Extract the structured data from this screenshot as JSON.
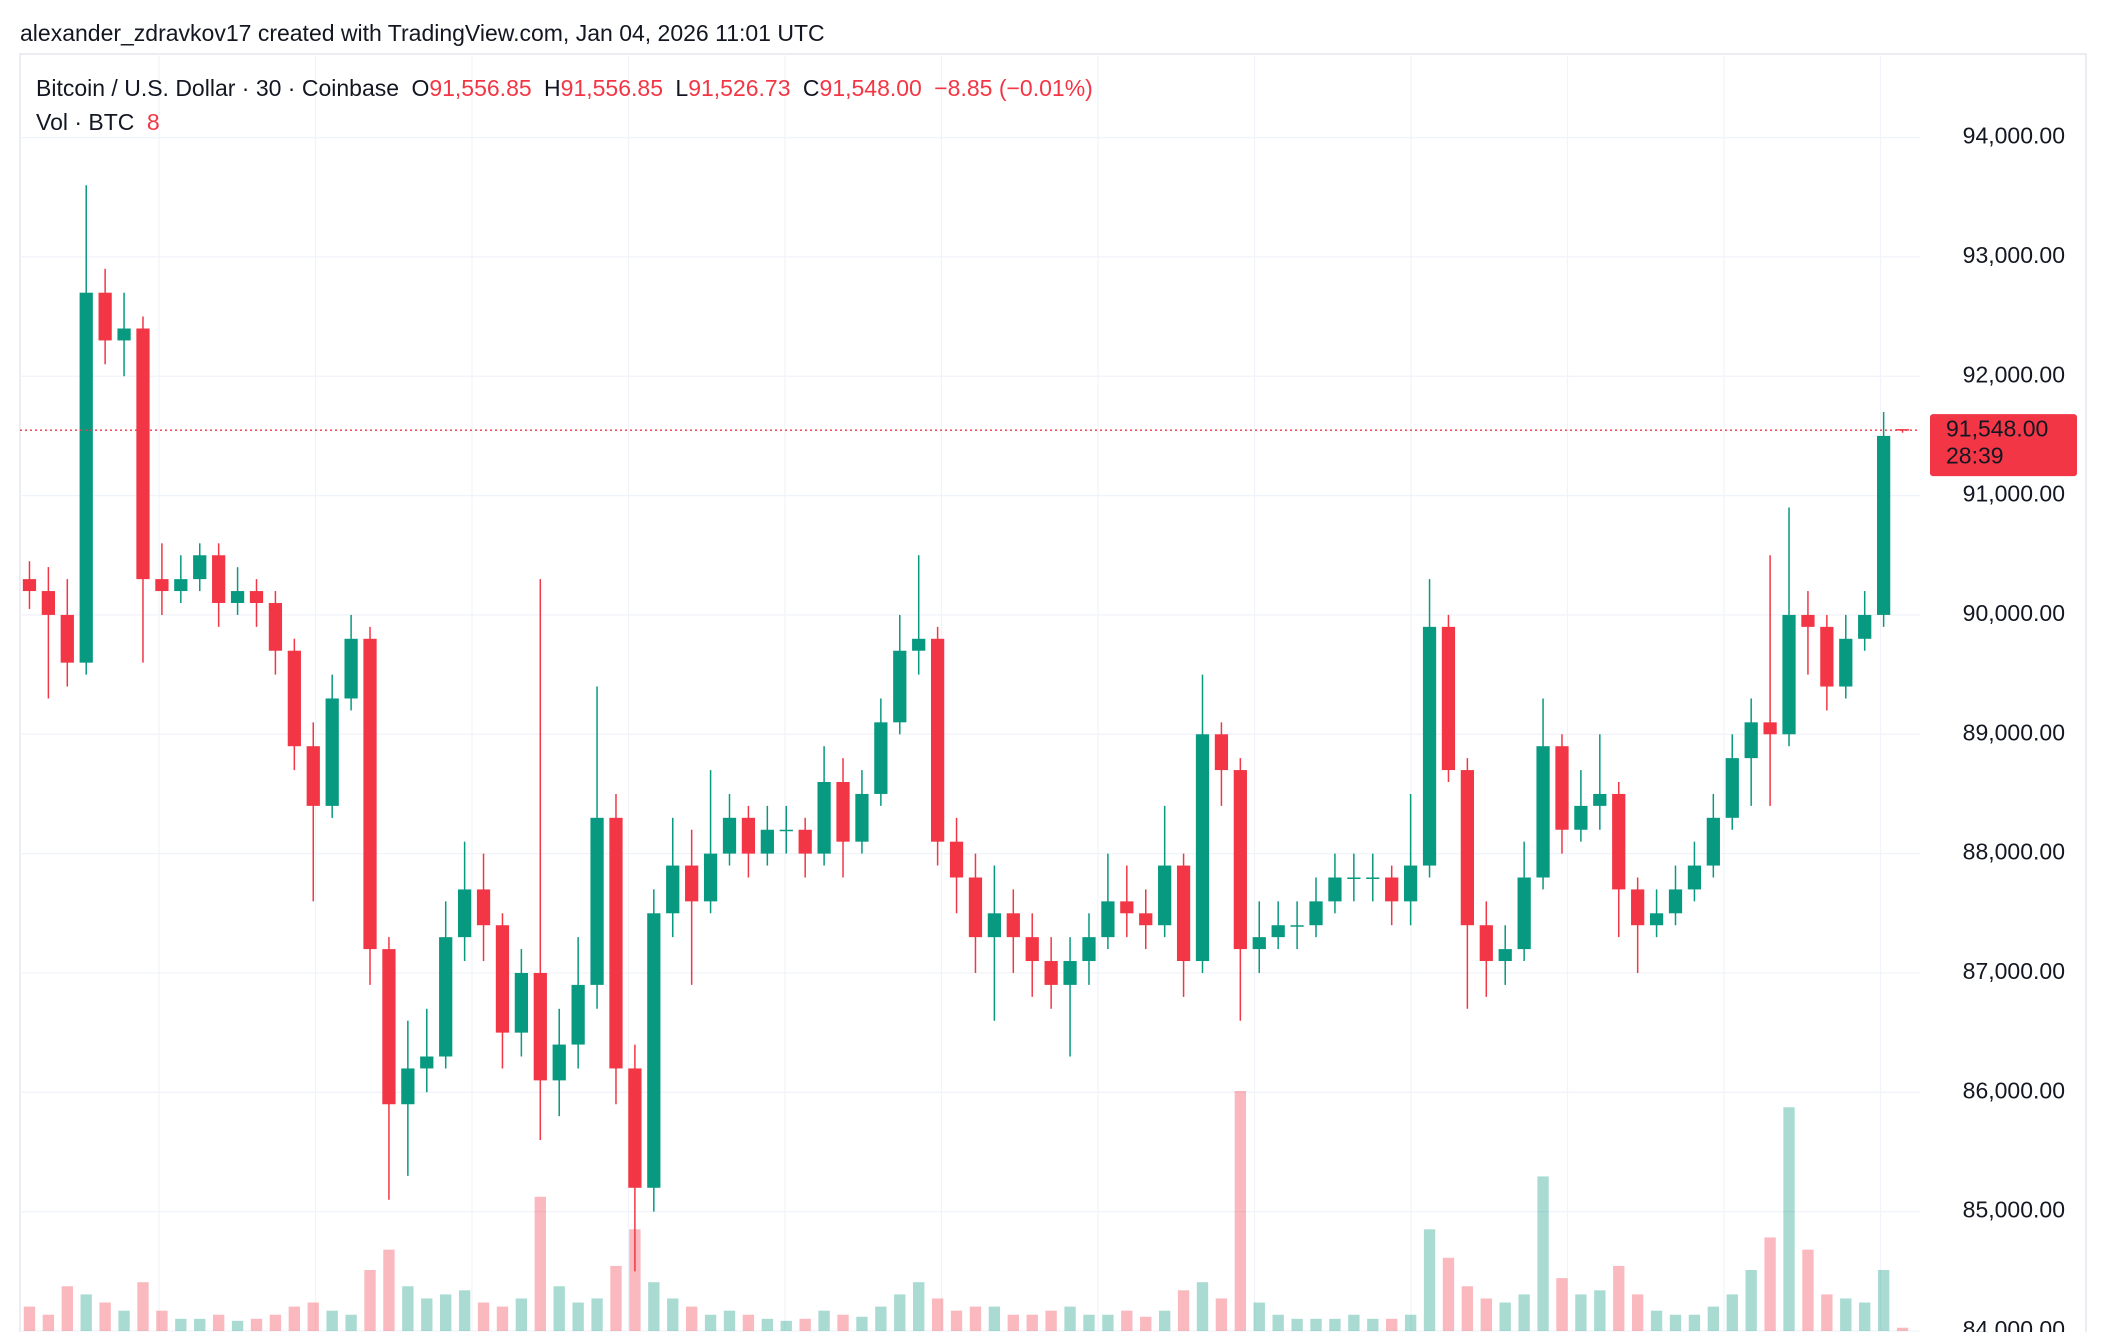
{
  "header": {
    "byline": "alexander_zdravkov17 created with TradingView.com, Jan 04, 2026 11:01 UTC"
  },
  "chart_data": {
    "type": "candlestick",
    "title": "Bitcoin / U.S. Dollar · 30 · Coinbase",
    "ohlc_legend": [
      {
        "key": "O",
        "value": "91,556.85"
      },
      {
        "key": "H",
        "value": "91,556.85"
      },
      {
        "key": "L",
        "value": "91,526.73"
      },
      {
        "key": "C",
        "value": "91,548.00"
      }
    ],
    "change_label": "−8.85 (−0.01%)",
    "volume_title": "Vol · BTC",
    "up_color": "#089981",
    "down_color": "#f23645",
    "open": [
      90300,
      90200,
      90000,
      89600,
      92700,
      92300,
      92400,
      90300,
      90200,
      90300,
      90500,
      90100,
      90200,
      90100,
      89700,
      88900,
      88400,
      89300,
      89800,
      87200,
      85900,
      86200,
      86300,
      87300,
      87700,
      87400,
      86500,
      87000,
      86100,
      86400,
      86900,
      88300,
      86200,
      85200,
      87500,
      87900,
      87600,
      88000,
      88300,
      88000,
      88200,
      88200,
      88000,
      88600,
      88100,
      88500,
      89100,
      89700,
      89800,
      88100,
      87800,
      87300,
      87500,
      87300,
      87100,
      86900,
      87100,
      87300,
      87600,
      87500,
      87400,
      87900,
      87100,
      89000,
      88700,
      87200,
      87300,
      87400,
      87400,
      87600,
      87800,
      87800,
      87800,
      87600,
      87900,
      89900,
      88700,
      87400,
      87100,
      87200,
      87800,
      88900,
      88200,
      88400,
      88500,
      87700,
      87400,
      87500,
      87700,
      87900,
      88300,
      88800,
      89100,
      89000,
      90000,
      89900,
      89400,
      89800,
      90000,
      91556.85
    ],
    "high": [
      90450,
      90400,
      90300,
      93600,
      92900,
      92700,
      92500,
      90600,
      90500,
      90600,
      90600,
      90400,
      90300,
      90200,
      89800,
      89100,
      89500,
      90000,
      89900,
      87300,
      86600,
      86700,
      87600,
      88100,
      88000,
      87500,
      87200,
      90300,
      86700,
      87300,
      89400,
      88500,
      86400,
      87700,
      88300,
      88200,
      88700,
      88500,
      88400,
      88400,
      88400,
      88300,
      88900,
      88800,
      88700,
      89300,
      90000,
      90500,
      89900,
      88300,
      88000,
      87900,
      87700,
      87500,
      87300,
      87300,
      87500,
      88000,
      87900,
      87700,
      88400,
      88000,
      89500,
      89100,
      88800,
      87600,
      87600,
      87600,
      87800,
      88000,
      88000,
      88000,
      87900,
      88500,
      90300,
      90000,
      88800,
      87600,
      87400,
      88100,
      89300,
      89000,
      88700,
      89000,
      88600,
      87800,
      87700,
      87900,
      88100,
      88500,
      89000,
      89300,
      90500,
      90900,
      90200,
      90000,
      90000,
      90200,
      91700,
      91556.85
    ],
    "low": [
      90050,
      89300,
      89400,
      89500,
      92100,
      92000,
      89600,
      90000,
      90100,
      90200,
      89900,
      90000,
      89900,
      89500,
      88700,
      87600,
      88300,
      89200,
      86900,
      85100,
      85300,
      86000,
      86200,
      87100,
      87100,
      86200,
      86300,
      85600,
      85800,
      86200,
      86700,
      85900,
      84500,
      85000,
      87300,
      86900,
      87500,
      87900,
      87800,
      87900,
      88000,
      87800,
      87900,
      87800,
      88000,
      88400,
      89000,
      89500,
      87900,
      87500,
      87000,
      86600,
      87000,
      86800,
      86700,
      86300,
      86900,
      87200,
      87300,
      87200,
      87300,
      86800,
      87000,
      88400,
      86600,
      87000,
      87200,
      87200,
      87300,
      87500,
      87600,
      87600,
      87400,
      87400,
      87800,
      88600,
      86700,
      86800,
      86900,
      87100,
      87700,
      88000,
      88100,
      88200,
      87300,
      87000,
      87300,
      87400,
      87600,
      87800,
      88200,
      88400,
      88400,
      88900,
      89500,
      89200,
      89300,
      89700,
      89900,
      91526.73
    ],
    "close": [
      90200,
      90000,
      89600,
      92700,
      92300,
      92400,
      90300,
      90200,
      90300,
      90500,
      90100,
      90200,
      90100,
      89700,
      88900,
      88400,
      89300,
      89800,
      87200,
      85900,
      86200,
      86300,
      87300,
      87700,
      87400,
      86500,
      87000,
      86100,
      86400,
      86900,
      88300,
      86200,
      85200,
      87500,
      87900,
      87600,
      88000,
      88300,
      88000,
      88200,
      88200,
      88000,
      88600,
      88100,
      88500,
      89100,
      89700,
      89800,
      88100,
      87800,
      87300,
      87500,
      87300,
      87100,
      86900,
      87100,
      87300,
      87600,
      87500,
      87400,
      87900,
      87100,
      89000,
      88700,
      87200,
      87300,
      87400,
      87400,
      87600,
      87800,
      87800,
      87800,
      87600,
      87900,
      89900,
      88700,
      87400,
      87100,
      87200,
      87800,
      88900,
      88200,
      88400,
      88500,
      87700,
      87400,
      87500,
      87700,
      87900,
      88300,
      88800,
      89100,
      89000,
      90000,
      89900,
      89400,
      89800,
      90000,
      91500,
      91548
    ],
    "volume": [
      60,
      40,
      110,
      90,
      70,
      50,
      120,
      50,
      30,
      30,
      40,
      25,
      30,
      40,
      60,
      70,
      50,
      40,
      150,
      200,
      110,
      80,
      90,
      100,
      70,
      60,
      80,
      330,
      110,
      70,
      80,
      160,
      250,
      120,
      80,
      60,
      40,
      50,
      40,
      30,
      25,
      30,
      50,
      40,
      35,
      60,
      90,
      120,
      80,
      50,
      60,
      60,
      40,
      40,
      50,
      60,
      40,
      40,
      50,
      35,
      50,
      100,
      120,
      80,
      590,
      70,
      40,
      30,
      30,
      30,
      40,
      30,
      30,
      40,
      250,
      180,
      110,
      80,
      70,
      90,
      380,
      130,
      90,
      100,
      160,
      90,
      50,
      40,
      40,
      60,
      90,
      150,
      230,
      550,
      200,
      90,
      80,
      70,
      150,
      8
    ],
    "ylim": [
      84000,
      94700
    ],
    "yticks": [
      {
        "value": 84000,
        "label": "84,000.00"
      },
      {
        "value": 85000,
        "label": "85,000.00"
      },
      {
        "value": 86000,
        "label": "86,000.00"
      },
      {
        "value": 87000,
        "label": "87,000.00"
      },
      {
        "value": 88000,
        "label": "88,000.00"
      },
      {
        "value": 89000,
        "label": "89,000.00"
      },
      {
        "value": 90000,
        "label": "90,000.00"
      },
      {
        "value": 91000,
        "label": "91,000.00"
      },
      {
        "value": 92000,
        "label": "92,000.00"
      },
      {
        "value": 93000,
        "label": "93,000.00"
      },
      {
        "value": 94000,
        "label": "94,000.00"
      }
    ],
    "grid": true,
    "last_price": {
      "value": 91548,
      "label": "91,548.00"
    },
    "countdown": "28:39"
  }
}
